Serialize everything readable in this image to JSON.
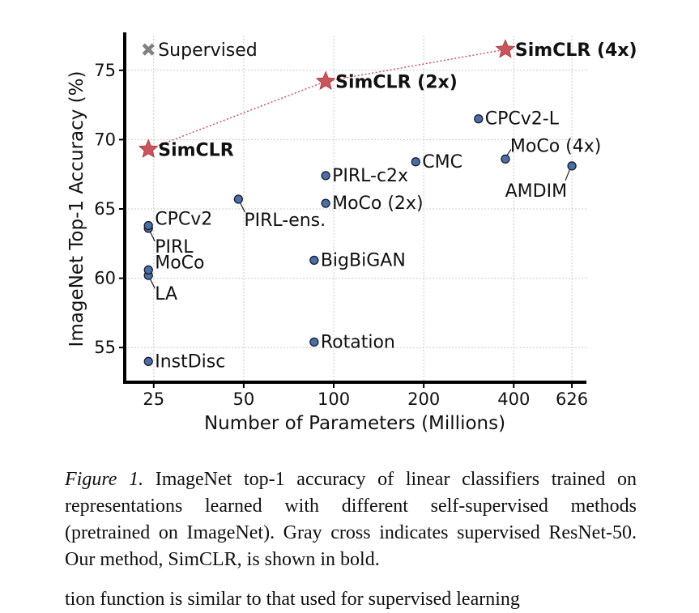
{
  "chart_data": {
    "type": "scatter",
    "xlabel": "Number of Parameters (Millions)",
    "ylabel": "ImageNet Top-1 Accuracy (%)",
    "xscale": "log",
    "x_ticks": [
      25,
      50,
      100,
      200,
      400,
      626
    ],
    "y_ticks": [
      55,
      60,
      65,
      70,
      75
    ],
    "xlim": [
      20,
      700
    ],
    "ylim": [
      52.5,
      77.5
    ],
    "grid": true,
    "points": [
      {
        "label": "InstDisc",
        "x": 24,
        "y": 54.0,
        "kind": "other"
      },
      {
        "label": "LA",
        "x": 24,
        "y": 60.2,
        "kind": "other"
      },
      {
        "label": "MoCo",
        "x": 24,
        "y": 60.6,
        "kind": "other"
      },
      {
        "label": "PIRL",
        "x": 24,
        "y": 63.6,
        "kind": "other"
      },
      {
        "label": "CPCv2",
        "x": 24,
        "y": 63.8,
        "kind": "other"
      },
      {
        "label": "PIRL-ens.",
        "x": 48,
        "y": 65.7,
        "kind": "other"
      },
      {
        "label": "Rotation",
        "x": 86,
        "y": 55.4,
        "kind": "other"
      },
      {
        "label": "BigBiGAN",
        "x": 86,
        "y": 61.3,
        "kind": "other"
      },
      {
        "label": "MoCo (2x)",
        "x": 94,
        "y": 65.4,
        "kind": "other"
      },
      {
        "label": "PIRL-c2x",
        "x": 94,
        "y": 67.4,
        "kind": "other"
      },
      {
        "label": "CMC",
        "x": 188,
        "y": 68.4,
        "kind": "other"
      },
      {
        "label": "CPCv2-L",
        "x": 305,
        "y": 71.5,
        "kind": "other"
      },
      {
        "label": "MoCo (4x)",
        "x": 375,
        "y": 68.6,
        "kind": "other"
      },
      {
        "label": "AMDIM",
        "x": 626,
        "y": 68.1,
        "kind": "other"
      },
      {
        "label": "Supervised",
        "x": 24,
        "y": 76.5,
        "kind": "supervised"
      },
      {
        "label": "SimCLR",
        "x": 24,
        "y": 69.3,
        "kind": "simclr"
      },
      {
        "label": "SimCLR (2x)",
        "x": 94,
        "y": 74.2,
        "kind": "simclr"
      },
      {
        "label": "SimCLR (4x)",
        "x": 375,
        "y": 76.5,
        "kind": "simclr"
      }
    ],
    "simclr_line": [
      "SimCLR",
      "SimCLR (2x)",
      "SimCLR (4x)"
    ],
    "colors": {
      "point_fill": "#4a6fa5",
      "point_edge": "#1a1a2e",
      "simclr_star": "#c9545b",
      "supervised_cross": "#808080",
      "line": "#c9545b",
      "grid": "#cccccc",
      "axis": "#000000"
    }
  },
  "caption": {
    "figure_label": "Figure 1.",
    "text": " ImageNet top-1 accuracy of linear classifiers trained on representations learned with different self-supervised methods (pretrained on ImageNet). Gray cross indicates supervised ResNet-50. Our method, SimCLR, is shown in bold."
  },
  "cutoff_text": "tion function is similar to that used for supervised learning"
}
